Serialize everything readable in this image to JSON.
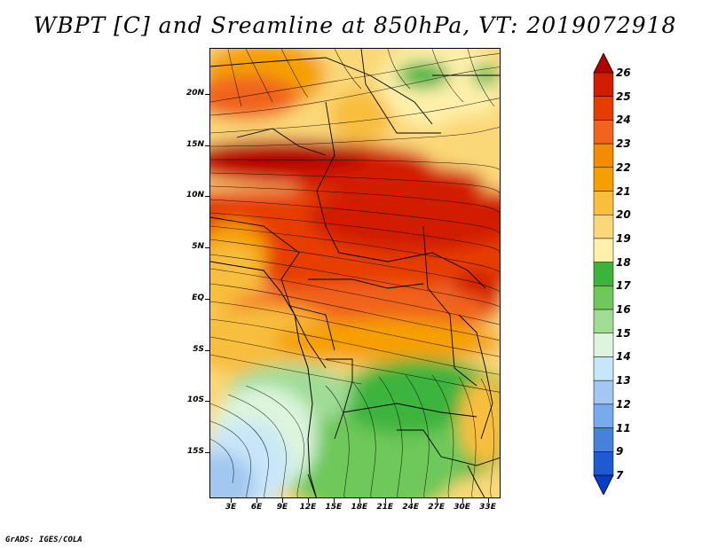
{
  "title": "WBPT [C] and Sreamline at 850hPa, VT: 2019072918",
  "credit": "GrADS: IGES/COLA",
  "axes": {
    "lat_labels": [
      "20N",
      "15N",
      "10N",
      "5N",
      "EQ",
      "5S",
      "10S",
      "15S"
    ],
    "lat_values": [
      20,
      15,
      10,
      5,
      0,
      -5,
      -10,
      -15
    ],
    "lon_labels": [
      "3E",
      "6E",
      "9E",
      "12E",
      "15E",
      "18E",
      "21E",
      "24E",
      "27E",
      "30E",
      "33E"
    ],
    "lon_values": [
      3,
      6,
      9,
      12,
      15,
      18,
      21,
      24,
      27,
      30,
      33
    ],
    "lon_range": [
      0.5,
      34.5
    ],
    "lat_range": [
      -19.5,
      24.5
    ]
  },
  "colorbar": {
    "labels": [
      "26",
      "25",
      "24",
      "23",
      "22",
      "21",
      "20",
      "19",
      "18",
      "17",
      "16",
      "15",
      "14",
      "13",
      "12",
      "11",
      "9",
      "7"
    ],
    "colors": [
      "#b40000",
      "#d21e00",
      "#e63c00",
      "#f0641e",
      "#f58c00",
      "#f5a000",
      "#f8be3c",
      "#fad878",
      "#fff0aa",
      "#3cb43c",
      "#6ec85a",
      "#a0dc96",
      "#dcf5dc",
      "#c8e6fa",
      "#a0c8f0",
      "#78aaee",
      "#4682dc",
      "#1e5ad2",
      "#0a3cc8"
    ]
  },
  "legend": {
    "variable": "WBPT",
    "units": "C",
    "level": "850hPa",
    "valid_time": "2019072918"
  }
}
